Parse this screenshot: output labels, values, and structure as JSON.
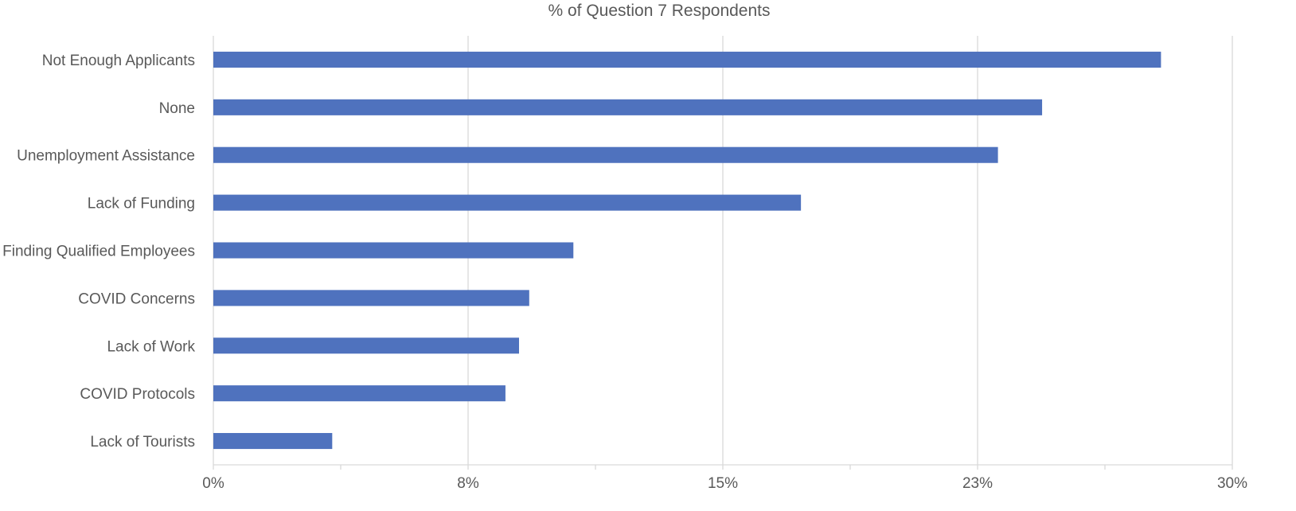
{
  "chart_data": {
    "type": "bar",
    "orientation": "horizontal",
    "title": "% of Question 7 Respondents",
    "xlabel": "",
    "ylabel": "",
    "categories": [
      "Not Enough Applicants",
      "None",
      "Unemployment Assistance",
      "Lack of Funding",
      "Finding Qualified Employees",
      "COVID Concerns",
      "Lack of Work",
      "COVID Protocols",
      "Lack of Tourists"
    ],
    "values": [
      27.9,
      24.4,
      23.1,
      17.3,
      10.6,
      9.3,
      9.0,
      8.6,
      3.5
    ],
    "xlim": [
      0,
      30
    ],
    "x_ticks": [
      0,
      7.5,
      15,
      22.5,
      30
    ],
    "x_tick_labels": [
      "0%",
      "8%",
      "15%",
      "23%",
      "30%"
    ],
    "grid": true,
    "legend": "none",
    "bar_color": "#4f72be"
  }
}
